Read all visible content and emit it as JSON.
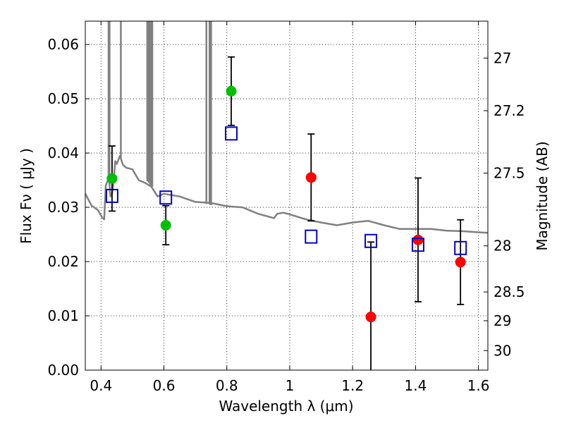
{
  "chart_data": {
    "type": "scatter",
    "title": "",
    "xlabel": "Wavelength  λ (μm)",
    "ylabel": "Flux  Fν  ( μJy )",
    "y2label": "Magnitude (AB)",
    "xlim": [
      0.35,
      1.63
    ],
    "ylim": [
      0.0,
      0.0643
    ],
    "grid": true,
    "x_ticks": [
      0.4,
      0.6,
      0.8,
      1.0,
      1.2,
      1.4,
      1.6
    ],
    "x_tick_labels": [
      "0.4",
      "0.6",
      "0.8",
      "1",
      "1.2",
      "1.4",
      "1.6"
    ],
    "y_ticks": [
      0.0,
      0.01,
      0.02,
      0.03,
      0.04,
      0.05,
      0.06
    ],
    "y_tick_labels": [
      "0.00",
      "0.01",
      "0.02",
      "0.03",
      "0.04",
      "0.05",
      "0.06"
    ],
    "mag_ticks": [
      {
        "label": "27",
        "flux": 0.0575
      },
      {
        "label": "27.2",
        "flux": 0.0478
      },
      {
        "label": "27.5",
        "flux": 0.0363
      },
      {
        "label": "28",
        "flux": 0.0229
      },
      {
        "label": "28.5",
        "flux": 0.0144
      },
      {
        "label": "29",
        "flux": 0.0091
      },
      {
        "label": "30",
        "flux": 0.0036
      }
    ],
    "series": [
      {
        "name": "green detections",
        "color": "#00c000",
        "marker": "circle",
        "points": [
          {
            "x": 0.435,
            "y": 0.0353,
            "yerr": 0.006
          },
          {
            "x": 0.606,
            "y": 0.0267,
            "yerr": 0.0036
          },
          {
            "x": 0.814,
            "y": 0.0514,
            "yerr": 0.0063
          }
        ]
      },
      {
        "name": "red detections",
        "color": "#ff0000",
        "marker": "circle",
        "points": [
          {
            "x": 1.068,
            "y": 0.0355,
            "yerr": 0.008
          },
          {
            "x": 1.258,
            "y": 0.0098,
            "yerr": 0.0138
          },
          {
            "x": 1.408,
            "y": 0.024,
            "yerr": 0.0114
          },
          {
            "x": 1.543,
            "y": 0.0199,
            "yerr": 0.0078
          }
        ]
      },
      {
        "name": "model photometry",
        "color": "#0000cc",
        "marker": "square",
        "points": [
          {
            "x": 0.435,
            "y": 0.0321
          },
          {
            "x": 0.606,
            "y": 0.0318
          },
          {
            "x": 0.814,
            "y": 0.0436
          },
          {
            "x": 1.068,
            "y": 0.0246
          },
          {
            "x": 1.258,
            "y": 0.0238
          },
          {
            "x": 1.408,
            "y": 0.0231
          },
          {
            "x": 1.543,
            "y": 0.0225
          }
        ]
      },
      {
        "name": "model spectrum",
        "color": "#808080",
        "line": true,
        "x": [
          0.35,
          0.37,
          0.39,
          0.4,
          0.405,
          0.41,
          0.415,
          0.425,
          0.43,
          0.435,
          0.44,
          0.445,
          0.45,
          0.46,
          0.47,
          0.48,
          0.5,
          0.52,
          0.54,
          0.56,
          0.58,
          0.6,
          0.65,
          0.7,
          0.75,
          0.8,
          0.85,
          0.9,
          0.95,
          0.96,
          0.98,
          1.0,
          1.05,
          1.1,
          1.15,
          1.2,
          1.25,
          1.3,
          1.35,
          1.4,
          1.45,
          1.5,
          1.55,
          1.6,
          1.63
        ],
        "y": [
          0.0325,
          0.0303,
          0.0295,
          0.0285,
          0.028,
          0.0278,
          0.034,
          0.0355,
          0.032,
          0.0325,
          0.0345,
          0.0385,
          0.038,
          0.0395,
          0.0378,
          0.0373,
          0.037,
          0.035,
          0.0345,
          0.0338,
          0.032,
          0.0325,
          0.032,
          0.031,
          0.0308,
          0.0302,
          0.03,
          0.0288,
          0.028,
          0.0288,
          0.029,
          0.0287,
          0.0278,
          0.0272,
          0.0267,
          0.0272,
          0.0275,
          0.0267,
          0.026,
          0.026,
          0.026,
          0.0257,
          0.0256,
          0.0254,
          0.0253
        ]
      },
      {
        "name": "model spectrum emission lines",
        "color": "#808080",
        "spikes": true,
        "x": [
          0.424,
          0.427,
          0.463,
          0.547,
          0.552,
          0.556,
          0.559,
          0.563,
          0.735,
          0.745,
          0.75
        ],
        "y_base": [
          0.0355,
          0.034,
          0.039,
          0.0348,
          0.0345,
          0.0342,
          0.034,
          0.0338,
          0.0306,
          0.0305,
          0.0304
        ]
      }
    ]
  }
}
